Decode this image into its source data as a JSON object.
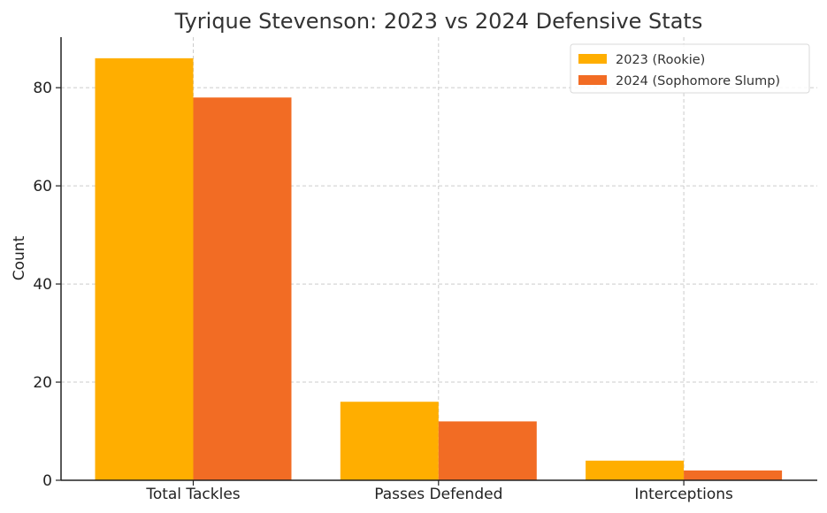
{
  "chart_data": {
    "type": "bar",
    "title": "Tyrique Stevenson: 2023 vs 2024 Defensive Stats",
    "xlabel": "",
    "ylabel": "Count",
    "categories": [
      "Total Tackles",
      "Passes Defended",
      "Interceptions"
    ],
    "series": [
      {
        "name": "2023 (Rookie)",
        "values": [
          86,
          16,
          4
        ],
        "color": "#FFAE00"
      },
      {
        "name": "2024 (Sophomore Slump)",
        "values": [
          78,
          12,
          2
        ],
        "color": "#F26C24"
      }
    ],
    "ylim": [
      0,
      90.3
    ],
    "yticks": [
      0,
      20,
      40,
      60,
      80
    ],
    "grid": true,
    "legend": "top-right"
  }
}
